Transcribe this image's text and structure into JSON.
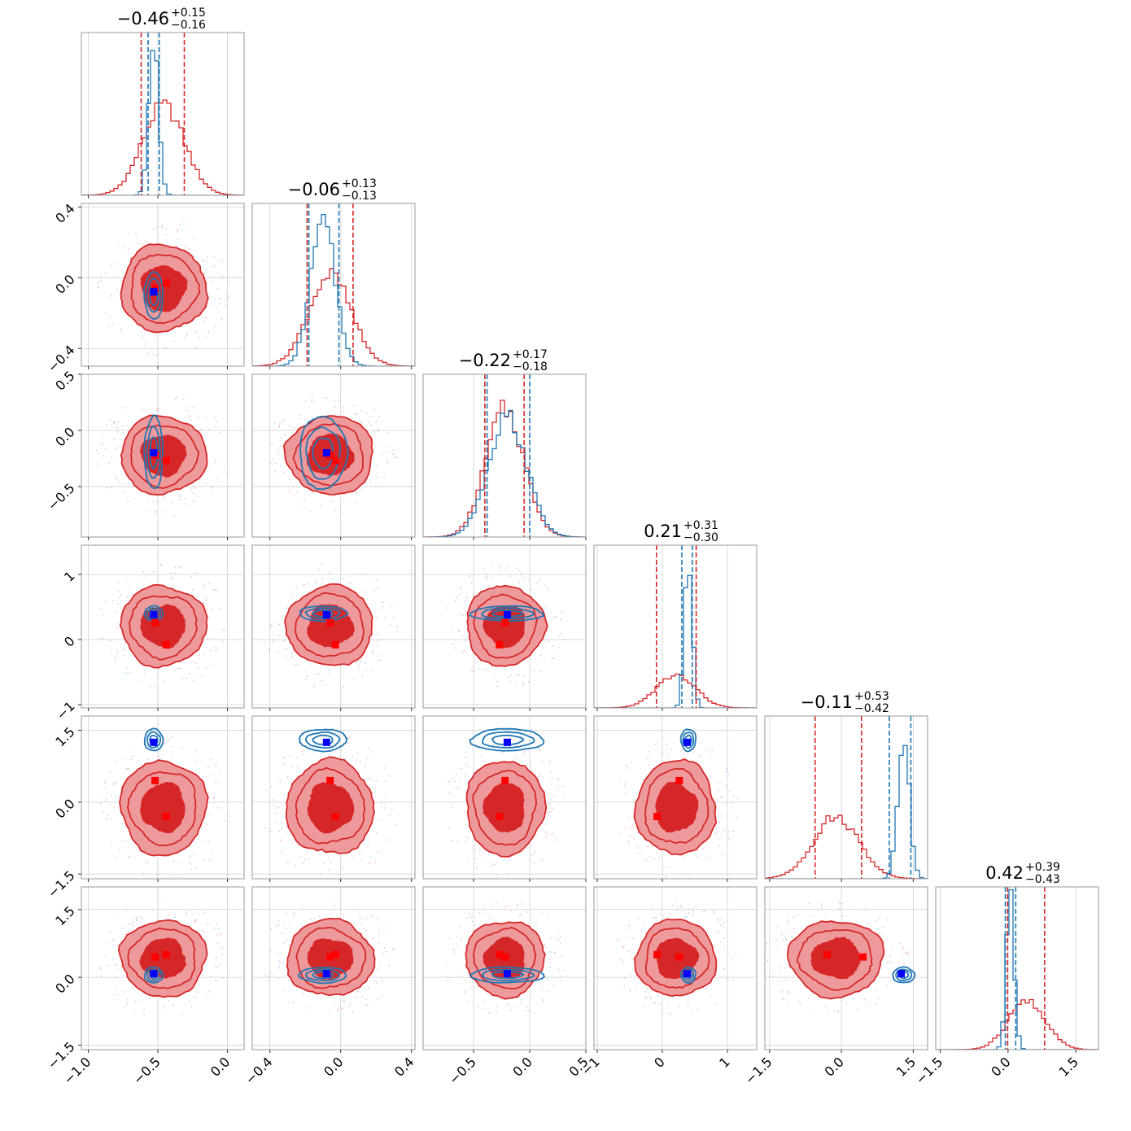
{
  "chart_data": {
    "type": "corner",
    "grid": true,
    "colors": {
      "red_run": "#d62728",
      "red_fill_outer": "#ee9a9c",
      "blue_run": "#1f77b4",
      "truth_blue": "#0000ff",
      "truth_red": "#ff0000",
      "grid": "#cfcfcf",
      "axes": "#9a9a9a"
    },
    "params": [
      {
        "title": {
          "main": "−0.46",
          "sup": "+0.15",
          "sub": "−0.16"
        },
        "range": [
          -1.05,
          0.12
        ],
        "ticks": [
          {
            "v": -1.0,
            "label": "−1.0"
          },
          {
            "v": -0.5,
            "label": "−0.5"
          },
          {
            "v": 0.0,
            "label": "0.0"
          }
        ],
        "truth_blue": -0.53,
        "truth_red": [
          -0.52,
          -0.44
        ],
        "red_hist": {
          "mean": -0.46,
          "sd": 0.15,
          "peak": 0.55
        },
        "blue_hist": {
          "mean": -0.53,
          "sd": 0.035,
          "peak": 0.92
        },
        "red_quantiles": [
          -0.62,
          -0.31
        ],
        "blue_quantiles": [
          -0.57,
          -0.49
        ]
      },
      {
        "title": {
          "main": "−0.06",
          "sup": "+0.13",
          "sub": "−0.13"
        },
        "range": [
          -0.5,
          0.42
        ],
        "ticks": [
          {
            "v": -0.4,
            "label": "−0.4"
          },
          {
            "v": 0.0,
            "label": "0.0"
          },
          {
            "v": 0.4,
            "label": "0.4"
          }
        ],
        "truth_blue": -0.08,
        "truth_red": [
          -0.06,
          -0.03
        ],
        "red_hist": {
          "mean": -0.06,
          "sd": 0.12,
          "peak": 0.56
        },
        "blue_hist": {
          "mean": -0.1,
          "sd": 0.07,
          "peak": 0.88
        },
        "red_quantiles": [
          -0.19,
          0.07
        ],
        "blue_quantiles": [
          -0.18,
          -0.01
        ]
      },
      {
        "title": {
          "main": "−0.22",
          "sup": "+0.17",
          "sub": "−0.18"
        },
        "range": [
          -0.95,
          0.5
        ],
        "ticks": [
          {
            "v": -0.5,
            "label": "−0.5"
          },
          {
            "v": 0.0,
            "label": "0.0"
          },
          {
            "v": 0.5,
            "label": "0.5"
          }
        ],
        "truth_blue": -0.2,
        "truth_red": [
          -0.22,
          -0.27
        ],
        "red_hist": {
          "mean": -0.22,
          "sd": 0.17,
          "peak": 0.78
        },
        "blue_hist": {
          "mean": -0.2,
          "sd": 0.17,
          "peak": 0.74
        },
        "red_quantiles": [
          -0.4,
          -0.05
        ],
        "blue_quantiles": [
          -0.38,
          0.0
        ]
      },
      {
        "title": {
          "main": "0.21",
          "sup": "+0.31",
          "sub": "−0.30"
        },
        "range": [
          -1.05,
          1.45
        ],
        "ticks": [
          {
            "v": -1.0,
            "label": "−1"
          },
          {
            "v": 0.0,
            "label": "0"
          },
          {
            "v": 1.0,
            "label": "1"
          }
        ],
        "truth_blue": 0.38,
        "truth_red": [
          0.26,
          -0.08
        ],
        "red_hist": {
          "mean": 0.21,
          "sd": 0.3,
          "peak": 0.2
        },
        "blue_hist": {
          "mean": 0.4,
          "sd": 0.06,
          "peak": 0.92
        },
        "red_quantiles": [
          -0.09,
          0.52
        ],
        "blue_quantiles": [
          0.3,
          0.46
        ]
      },
      {
        "title": {
          "main": "−0.11",
          "sup": "+0.53",
          "sub": "−0.42"
        },
        "range": [
          -1.6,
          1.8
        ],
        "ticks": [
          {
            "v": -1.5,
            "label": "−1.5"
          },
          {
            "v": 0.0,
            "label": "0.0"
          },
          {
            "v": 1.5,
            "label": "1.5"
          }
        ],
        "truth_blue": 1.25,
        "truth_red": [
          0.45,
          -0.3
        ],
        "red_hist": {
          "mean": -0.11,
          "sd": 0.48,
          "peak": 0.38
        },
        "blue_hist": {
          "mean": 1.3,
          "sd": 0.12,
          "peak": 0.88
        },
        "red_quantiles": [
          -0.55,
          0.42
        ],
        "blue_quantiles": [
          1.0,
          1.45
        ]
      },
      {
        "title": {
          "main": "0.42",
          "sup": "+0.39",
          "sub": "−0.43"
        },
        "range": [
          -1.6,
          2.0
        ],
        "ticks": [
          {
            "v": -1.5,
            "label": "−1.5"
          },
          {
            "v": 0.0,
            "label": "0.0"
          },
          {
            "v": 1.5,
            "label": "1.5"
          }
        ],
        "truth_blue": 0.08,
        "truth_red": [
          0.45,
          0.5
        ],
        "red_hist": {
          "mean": 0.42,
          "sd": 0.41,
          "peak": 0.3
        },
        "blue_hist": {
          "mean": 0.05,
          "sd": 0.09,
          "peak": 0.92
        },
        "red_quantiles": [
          -0.01,
          0.81
        ],
        "blue_quantiles": [
          -0.06,
          0.17
        ]
      }
    ]
  }
}
